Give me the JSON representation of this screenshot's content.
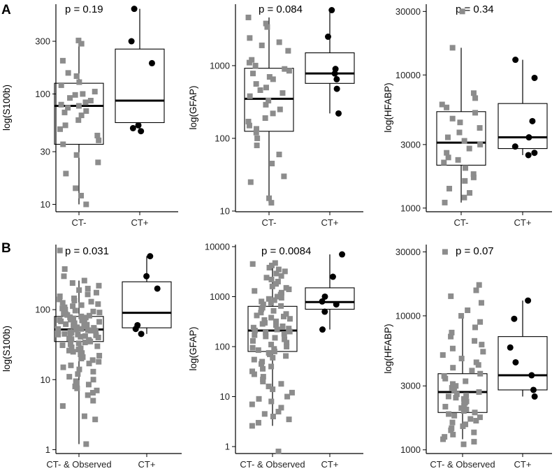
{
  "panels": [
    {
      "label": "A"
    },
    {
      "label": "B"
    }
  ],
  "chart_data": [
    {
      "type": "boxplot",
      "panel": "A",
      "ylabel": "log(S100b)",
      "pvalue": "p = 0.19",
      "scale": "log",
      "ylim": [
        8.7,
        650
      ],
      "yticks": [
        10,
        30,
        100,
        300
      ],
      "categories": [
        "CT-",
        "CT+"
      ],
      "boxes": [
        {
          "q1": 35,
          "median": 78,
          "q3": 125,
          "lower": 10,
          "upper": 305
        },
        {
          "q1": 55,
          "median": 87,
          "q3": 255,
          "lower": 47,
          "upper": 590
        }
      ],
      "points": [
        [
          305,
          285,
          200,
          155,
          145,
          128,
          120,
          105,
          100,
          98,
          92,
          87,
          84,
          80,
          78,
          75,
          70,
          68,
          64,
          58,
          52,
          48,
          42,
          38,
          35,
          28,
          24,
          19,
          14,
          12,
          10
        ],
        [
          590,
          300,
          190,
          52,
          49,
          46
        ]
      ]
    },
    {
      "type": "boxplot",
      "panel": "A",
      "ylabel": "log(GFAP)",
      "pvalue": "p = 0.084",
      "scale": "log",
      "ylim": [
        10,
        7000
      ],
      "yticks": [
        10,
        100,
        1000
      ],
      "categories": [
        "CT-",
        "CT+"
      ],
      "boxes": [
        {
          "q1": 125,
          "median": 350,
          "q3": 920,
          "lower": 13,
          "upper": 4600
        },
        {
          "q1": 570,
          "median": 780,
          "q3": 1500,
          "lower": 220,
          "upper": 5800
        }
      ],
      "points": [
        [
          4600,
          3800,
          3400,
          2400,
          2100,
          1900,
          1600,
          1200,
          1100,
          1000,
          900,
          850,
          780,
          700,
          650,
          560,
          500,
          460,
          420,
          380,
          330,
          290,
          250,
          220,
          190,
          170,
          150,
          135,
          120,
          100,
          80,
          60,
          45,
          30,
          25,
          15,
          13
        ],
        [
          5800,
          2500,
          900,
          780,
          650,
          480,
          220
        ]
      ]
    },
    {
      "type": "boxplot",
      "panel": "A",
      "ylabel": "log(HFABP)",
      "pvalue": "p = 0.34",
      "scale": "log",
      "ylim": [
        950,
        34000
      ],
      "yticks": [
        1000,
        3000,
        10000,
        30000
      ],
      "categories": [
        "CT-",
        "CT+"
      ],
      "boxes": [
        {
          "q1": 2100,
          "median": 3100,
          "q3": 5300,
          "lower": 1100,
          "upper": 16000
        },
        {
          "q1": 2800,
          "median": 3400,
          "q3": 6100,
          "lower": 2500,
          "upper": 13000
        }
      ],
      "points": [
        [
          30000,
          16000,
          7300,
          6700,
          6000,
          5700,
          5200,
          4700,
          4400,
          4000,
          3700,
          3400,
          3200,
          3000,
          2800,
          2600,
          2400,
          2300,
          2200,
          2000,
          1800,
          1700,
          1600,
          1400,
          1300,
          1200,
          1100
        ],
        [
          13000,
          9500,
          4500,
          3400,
          2900,
          2600,
          2500
        ]
      ]
    },
    {
      "type": "boxplot",
      "panel": "B",
      "ylabel": "log(S100b)",
      "pvalue": "p = 0.031",
      "scale": "log",
      "ylim": [
        0.9,
        850
      ],
      "yticks": [
        1,
        10,
        100
      ],
      "categories": [
        "CT- & Observed",
        "CT+"
      ],
      "boxes": [
        {
          "q1": 35,
          "median": 52,
          "q3": 80,
          "lower": 1.2,
          "upper": 260
        },
        {
          "q1": 55,
          "median": 90,
          "q3": 250,
          "lower": 45,
          "upper": 580
        }
      ],
      "points": [
        [
          700,
          380,
          300,
          260,
          240,
          220,
          200,
          190,
          175,
          165,
          155,
          145,
          140,
          135,
          130,
          125,
          120,
          116,
          112,
          108,
          104,
          100,
          97,
          94,
          91,
          88,
          86,
          84,
          82,
          80,
          78,
          77,
          75,
          74,
          72,
          71,
          70,
          68,
          67,
          66,
          64,
          63,
          62,
          61,
          60,
          59,
          58,
          57,
          56,
          55,
          54,
          53,
          53,
          52,
          51,
          50,
          50,
          49,
          48,
          47,
          46,
          45,
          44,
          44,
          43,
          42,
          41,
          40,
          39,
          38,
          37,
          36,
          35,
          34,
          33,
          32,
          31,
          30,
          29,
          28,
          27,
          26,
          25,
          24,
          23,
          22,
          21,
          20,
          19,
          18,
          17,
          16,
          15,
          14,
          13,
          12,
          11,
          10,
          9.5,
          9,
          8.5,
          8,
          7.5,
          7,
          6.5,
          6,
          5,
          4.2,
          3,
          2.7,
          1.2
        ],
        [
          580,
          300,
          200,
          60,
          53,
          45
        ]
      ]
    },
    {
      "type": "boxplot",
      "panel": "B",
      "ylabel": "log(GFAP)",
      "pvalue": "p = 0.0084",
      "scale": "log",
      "ylim": [
        0.75,
        11000
      ],
      "yticks": [
        1,
        10,
        100,
        1000,
        10000
      ],
      "categories": [
        "CT- & Observed",
        "CT+"
      ],
      "boxes": [
        {
          "q1": 80,
          "median": 210,
          "q3": 640,
          "lower": 2.6,
          "upper": 4600
        },
        {
          "q1": 560,
          "median": 780,
          "q3": 1500,
          "lower": 220,
          "upper": 7000
        }
      ],
      "points": [
        [
          4700,
          4500,
          4200,
          3800,
          3500,
          3200,
          2900,
          2600,
          2400,
          2200,
          2000,
          1800,
          1600,
          1500,
          1400,
          1300,
          1200,
          1100,
          1000,
          950,
          900,
          850,
          800,
          750,
          700,
          650,
          600,
          560,
          520,
          480,
          450,
          420,
          400,
          380,
          360,
          340,
          320,
          300,
          285,
          270,
          255,
          240,
          230,
          220,
          210,
          200,
          190,
          180,
          170,
          160,
          150,
          140,
          130,
          120,
          110,
          100,
          95,
          90,
          85,
          80,
          75,
          70,
          65,
          60,
          55,
          50,
          45,
          40,
          36,
          32,
          28,
          25,
          22,
          20,
          18,
          16,
          14,
          12,
          10,
          9,
          8,
          7,
          6,
          5,
          4.5,
          4,
          3.5,
          3,
          2.6,
          0.8
        ],
        [
          7000,
          2500,
          1000,
          800,
          700,
          500,
          220
        ]
      ]
    },
    {
      "type": "boxplot",
      "panel": "B",
      "ylabel": "log(HFABP)",
      "pvalue": "p = 0.07",
      "scale": "log",
      "ylim": [
        950,
        34000
      ],
      "yticks": [
        1000,
        3000,
        10000,
        30000
      ],
      "categories": [
        "CT- & Observed",
        "CT+"
      ],
      "boxes": [
        {
          "q1": 1900,
          "median": 2700,
          "q3": 3700,
          "lower": 1200,
          "upper": 10000
        },
        {
          "q1": 2800,
          "median": 3600,
          "q3": 7000,
          "lower": 2500,
          "upper": 13000
        }
      ],
      "points": [
        [
          30000,
          17000,
          15500,
          14000,
          12500,
          11000,
          10000,
          9000,
          8200,
          7500,
          7000,
          6500,
          6100,
          5700,
          5400,
          5100,
          4800,
          4500,
          4300,
          4100,
          3900,
          3700,
          3550,
          3400,
          3250,
          3100,
          3000,
          2900,
          2800,
          2700,
          2600,
          2550,
          2500,
          2450,
          2400,
          2350,
          2300,
          2250,
          2200,
          2150,
          2100,
          2050,
          2000,
          1950,
          1900,
          1850,
          1800,
          1750,
          1700,
          1650,
          1600,
          1550,
          1500,
          1450,
          1400,
          1350,
          1300,
          1250,
          1200,
          1150,
          1100
        ],
        [
          13000,
          9500,
          5800,
          4500,
          3600,
          2800,
          2500
        ]
      ]
    }
  ]
}
